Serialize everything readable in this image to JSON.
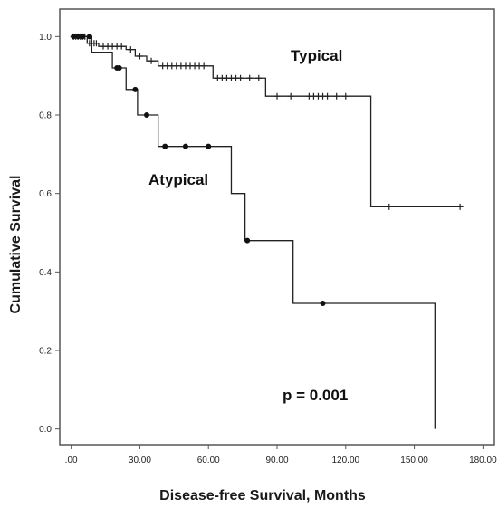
{
  "chart_data": {
    "type": "line",
    "subtype": "kaplan-meier step",
    "xlabel": "Disease-free Survival, Months",
    "ylabel": "Cumulative Survival",
    "xlim": [
      -5,
      185
    ],
    "ylim": [
      -0.04,
      1.07
    ],
    "x_ticks": [
      0,
      30,
      60,
      90,
      120,
      150,
      180
    ],
    "x_tick_labels": [
      ".00",
      "30.00",
      "60.00",
      "90.00",
      "120.00",
      "150.00",
      "180.00"
    ],
    "y_ticks": [
      0.0,
      0.2,
      0.4,
      0.6,
      0.8,
      1.0
    ],
    "y_tick_labels": [
      "0.0",
      "0.2",
      "0.4",
      "0.6",
      "0.8",
      "1.0"
    ],
    "grid": false,
    "legend": "none",
    "annotations": [
      {
        "text": "Typical",
        "x": 92,
        "y": 0.93
      },
      {
        "text": "Atypical",
        "x": 30,
        "y": 0.62
      },
      {
        "text": "p = 0.001",
        "x": 88,
        "y": 0.08
      }
    ],
    "series": [
      {
        "label": "Typical",
        "censor_marker": "plus",
        "steps": [
          [
            0,
            1.0
          ],
          [
            7,
            0.983
          ],
          [
            12,
            0.975
          ],
          [
            24,
            0.967
          ],
          [
            28,
            0.95
          ],
          [
            33,
            0.938
          ],
          [
            38,
            0.925
          ],
          [
            62,
            0.894
          ],
          [
            85,
            0.848
          ],
          [
            131,
            0.566
          ],
          [
            170,
            0.566
          ]
        ],
        "censored": [
          [
            1,
            1.0
          ],
          [
            2,
            1.0
          ],
          [
            3,
            1.0
          ],
          [
            4,
            1.0
          ],
          [
            5,
            1.0
          ],
          [
            6,
            1.0
          ],
          [
            8,
            0.983
          ],
          [
            9,
            0.983
          ],
          [
            10,
            0.983
          ],
          [
            11,
            0.983
          ],
          [
            14,
            0.975
          ],
          [
            16,
            0.975
          ],
          [
            18,
            0.975
          ],
          [
            20,
            0.975
          ],
          [
            22,
            0.975
          ],
          [
            26,
            0.967
          ],
          [
            30,
            0.95
          ],
          [
            35,
            0.938
          ],
          [
            40,
            0.925
          ],
          [
            42,
            0.925
          ],
          [
            44,
            0.925
          ],
          [
            46,
            0.925
          ],
          [
            48,
            0.925
          ],
          [
            50,
            0.925
          ],
          [
            52,
            0.925
          ],
          [
            54,
            0.925
          ],
          [
            56,
            0.925
          ],
          [
            58,
            0.925
          ],
          [
            64,
            0.894
          ],
          [
            66,
            0.894
          ],
          [
            68,
            0.894
          ],
          [
            70,
            0.894
          ],
          [
            72,
            0.894
          ],
          [
            74,
            0.894
          ],
          [
            78,
            0.894
          ],
          [
            82,
            0.894
          ],
          [
            90,
            0.848
          ],
          [
            96,
            0.848
          ],
          [
            104,
            0.848
          ],
          [
            106,
            0.848
          ],
          [
            108,
            0.848
          ],
          [
            110,
            0.848
          ],
          [
            112,
            0.848
          ],
          [
            116,
            0.848
          ],
          [
            120,
            0.848
          ],
          [
            139,
            0.566
          ],
          [
            170,
            0.566
          ]
        ]
      },
      {
        "label": "Atypical",
        "censor_marker": "dot",
        "steps": [
          [
            0,
            1.0
          ],
          [
            9,
            0.96
          ],
          [
            18,
            0.92
          ],
          [
            24,
            0.865
          ],
          [
            29,
            0.8
          ],
          [
            38,
            0.72
          ],
          [
            70,
            0.6
          ],
          [
            76,
            0.48
          ],
          [
            97,
            0.32
          ],
          [
            159,
            0.32
          ],
          [
            159,
            0.0
          ]
        ],
        "censored": [
          [
            1,
            1.0
          ],
          [
            3,
            1.0
          ],
          [
            5,
            1.0
          ],
          [
            8,
            1.0
          ],
          [
            20,
            0.92
          ],
          [
            21,
            0.92
          ],
          [
            28,
            0.865
          ],
          [
            33,
            0.8
          ],
          [
            41,
            0.72
          ],
          [
            50,
            0.72
          ],
          [
            60,
            0.72
          ],
          [
            77,
            0.48
          ],
          [
            110,
            0.32
          ]
        ]
      }
    ]
  }
}
